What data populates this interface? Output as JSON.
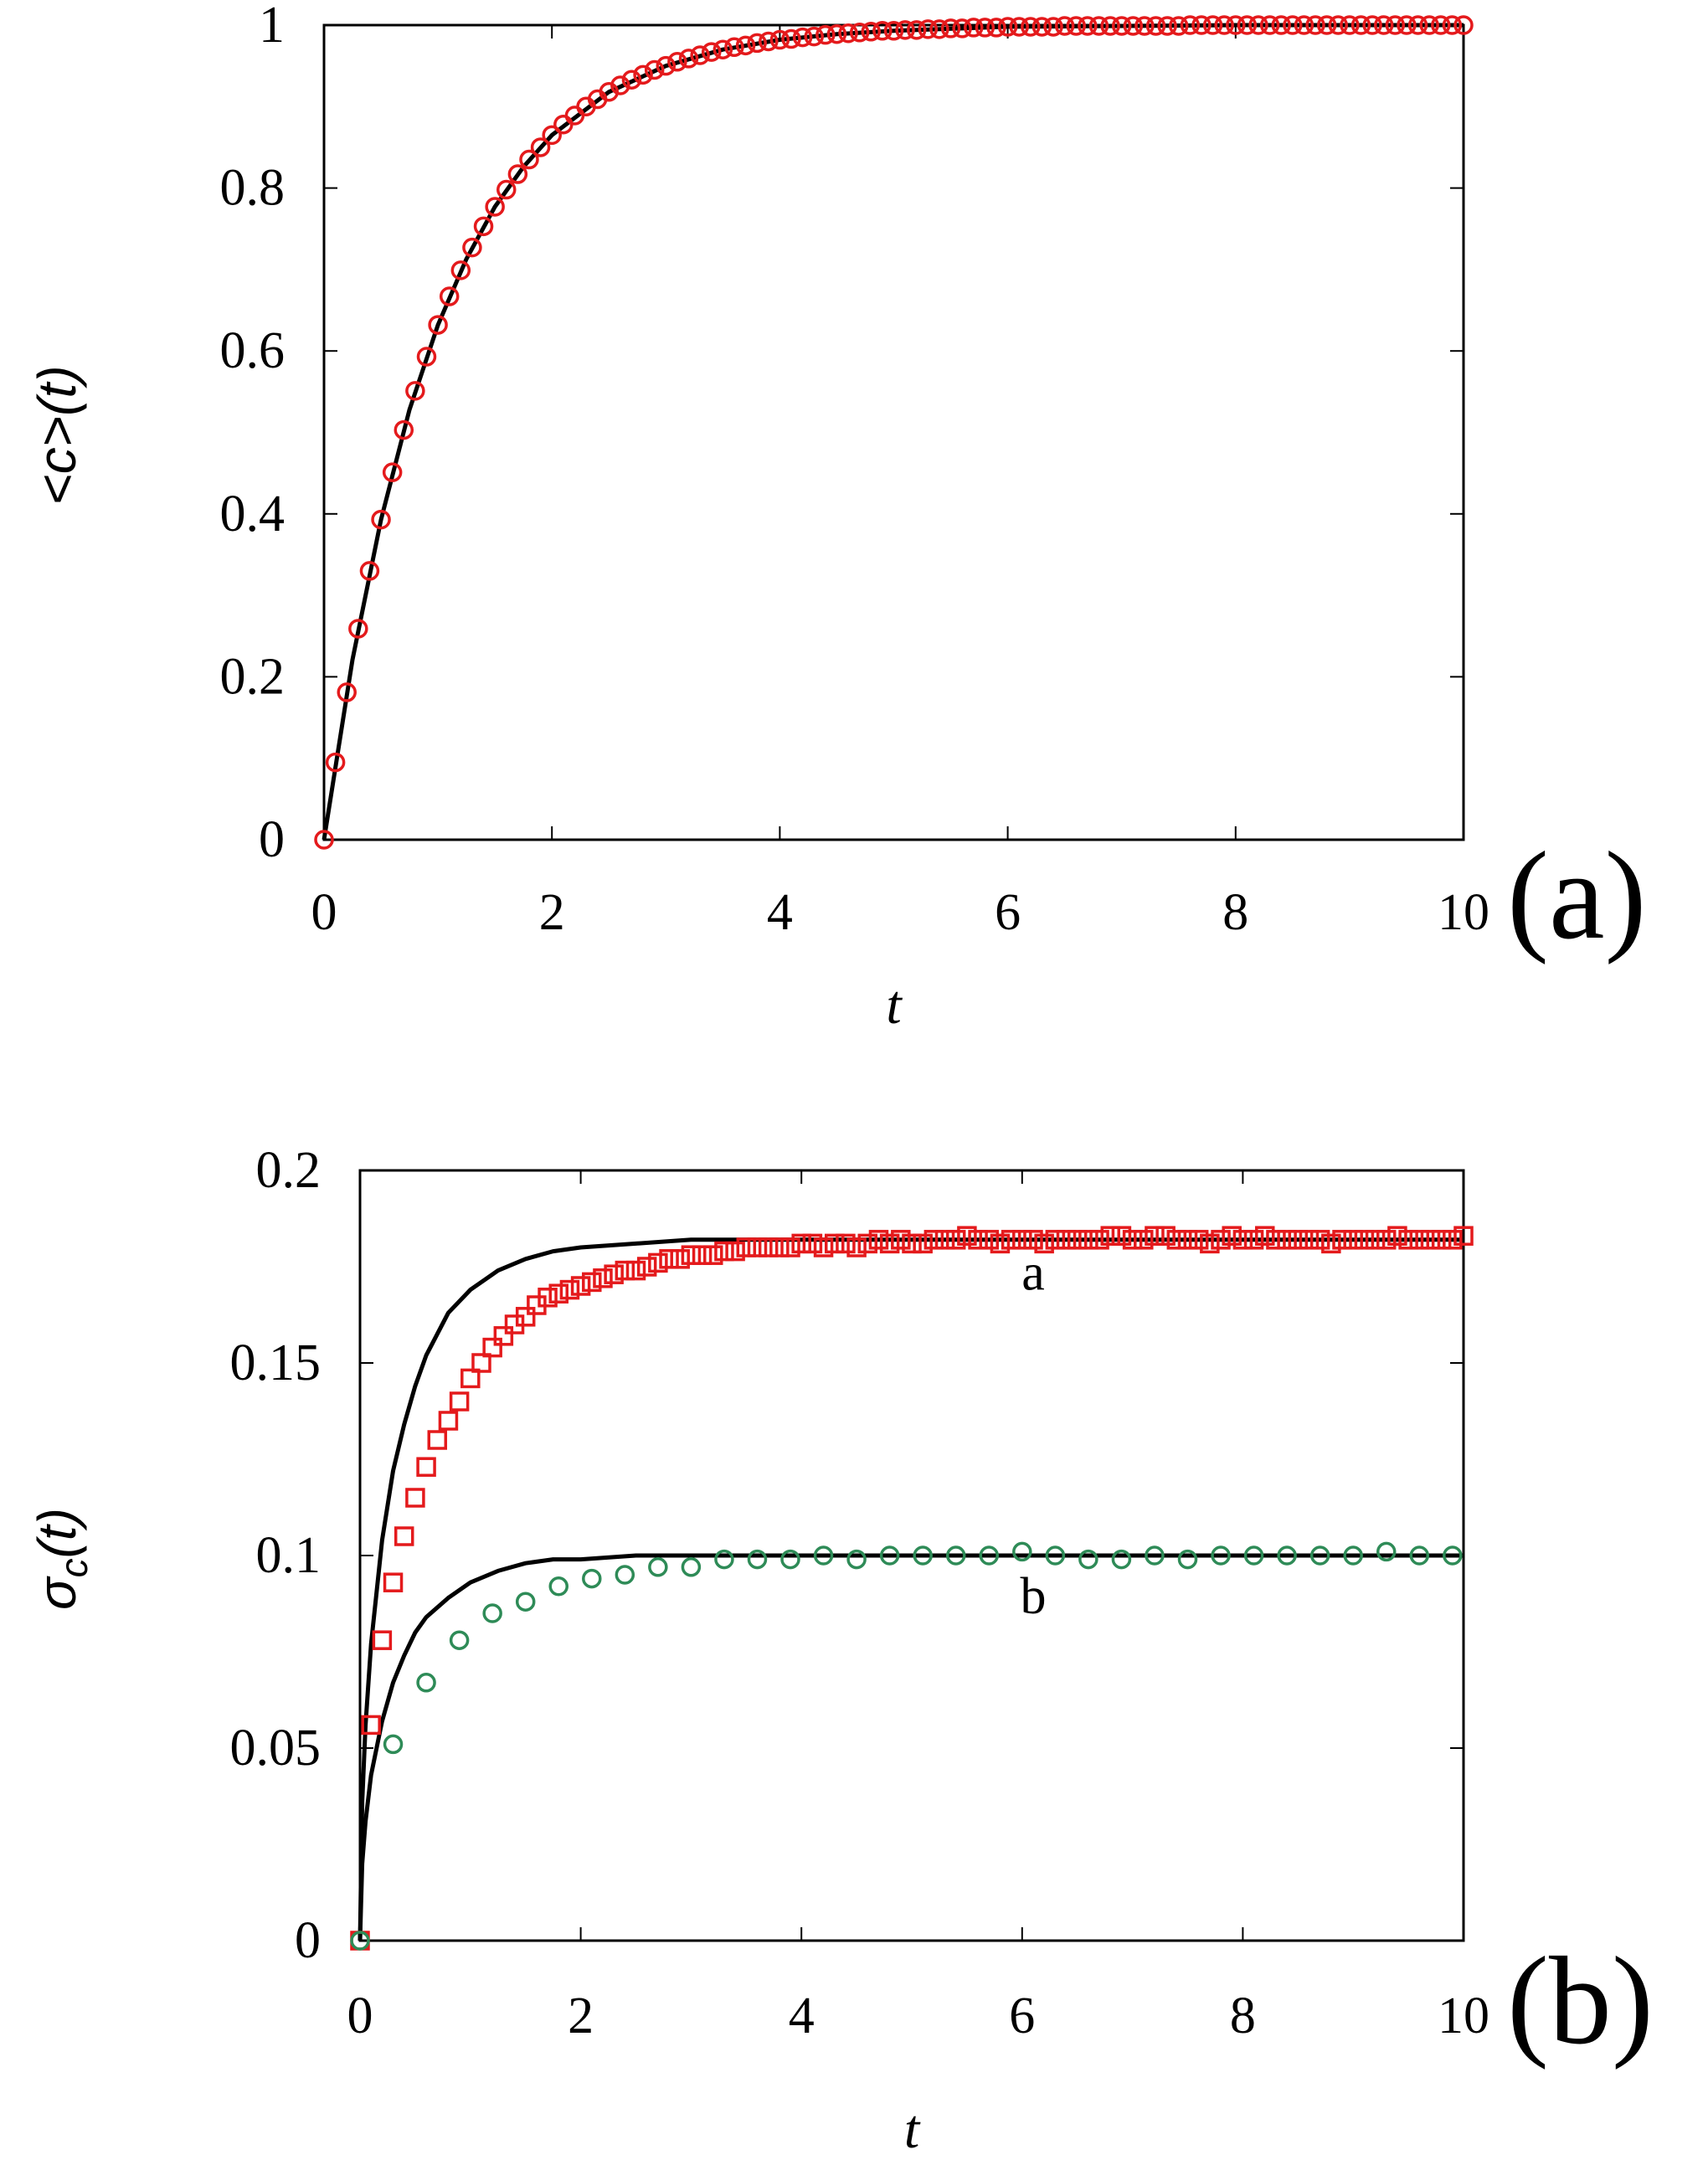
{
  "chart_data": [
    {
      "type": "line",
      "panel_label": "(a)",
      "xlabel": "t",
      "ylabel": "<c>(t)",
      "xlim": [
        0,
        10
      ],
      "ylim": [
        0,
        1
      ],
      "xticks": [
        "0",
        "2",
        "4",
        "6",
        "8",
        "10"
      ],
      "yticks": [
        "0",
        "0.2",
        "0.4",
        "0.6",
        "0.8",
        "1"
      ],
      "grid": false,
      "series": [
        {
          "kind": "markers",
          "marker": "circle",
          "color": "#e41a1c",
          "x": [
            0.0,
            0.1,
            0.2,
            0.3,
            0.4,
            0.5,
            0.6,
            0.7,
            0.8,
            0.9,
            1.0,
            1.1,
            1.2,
            1.3,
            1.4,
            1.5,
            1.6,
            1.7,
            1.8,
            1.9,
            2.0,
            2.1,
            2.2,
            2.3,
            2.4,
            2.5,
            2.6,
            2.7,
            2.8,
            2.9,
            3.0,
            3.1,
            3.2,
            3.3,
            3.4,
            3.5,
            3.6,
            3.7,
            3.8,
            3.9,
            4.0,
            4.1,
            4.2,
            4.3,
            4.4,
            4.5,
            4.6,
            4.7,
            4.8,
            4.9,
            5.0,
            5.1,
            5.2,
            5.3,
            5.4,
            5.5,
            5.6,
            5.7,
            5.8,
            5.9,
            6.0,
            6.1,
            6.2,
            6.3,
            6.4,
            6.5,
            6.6,
            6.7,
            6.8,
            6.9,
            7.0,
            7.1,
            7.2,
            7.3,
            7.4,
            7.5,
            7.6,
            7.7,
            7.8,
            7.9,
            8.0,
            8.1,
            8.2,
            8.3,
            8.4,
            8.5,
            8.6,
            8.7,
            8.8,
            8.9,
            9.0,
            9.1,
            9.2,
            9.3,
            9.4,
            9.5,
            9.6,
            9.7,
            9.8,
            9.9,
            10.0
          ],
          "y": [
            0.0,
            0.095,
            0.181,
            0.259,
            0.33,
            0.393,
            0.451,
            0.503,
            0.551,
            0.593,
            0.632,
            0.667,
            0.699,
            0.727,
            0.753,
            0.777,
            0.798,
            0.817,
            0.835,
            0.85,
            0.865,
            0.878,
            0.889,
            0.9,
            0.909,
            0.918,
            0.926,
            0.933,
            0.939,
            0.945,
            0.95,
            0.955,
            0.959,
            0.963,
            0.967,
            0.97,
            0.973,
            0.975,
            0.978,
            0.98,
            0.982,
            0.983,
            0.985,
            0.986,
            0.988,
            0.989,
            0.99,
            0.991,
            0.992,
            0.993,
            0.993,
            0.994,
            0.994,
            0.995,
            0.995,
            0.996,
            0.996,
            0.997,
            0.997,
            0.997,
            0.998,
            0.998,
            0.998,
            0.998,
            0.998,
            0.999,
            0.999,
            0.999,
            0.999,
            0.999,
            0.999,
            0.999,
            0.999,
            0.999,
            0.999,
            0.999,
            1.0,
            1.0,
            1.0,
            1.0,
            1.0,
            1.0,
            1.0,
            1.0,
            1.0,
            1.0,
            1.0,
            1.0,
            1.0,
            1.0,
            1.0,
            1.0,
            1.0,
            1.0,
            1.0,
            1.0,
            1.0,
            1.0,
            1.0,
            1.0,
            1.0
          ]
        },
        {
          "kind": "curve",
          "color": "#000000",
          "formula": "1 - exp(-t)",
          "x": [
            0,
            0.25,
            0.5,
            0.75,
            1.0,
            1.25,
            1.5,
            1.75,
            2.0,
            2.5,
            3.0,
            3.5,
            4.0,
            4.5,
            5.0,
            6.0,
            7.0,
            8.0,
            9.0,
            10.0
          ],
          "y": [
            0.0,
            0.221,
            0.393,
            0.528,
            0.632,
            0.713,
            0.777,
            0.826,
            0.865,
            0.918,
            0.95,
            0.97,
            0.982,
            0.989,
            0.993,
            0.998,
            0.999,
            1.0,
            1.0,
            1.0
          ]
        }
      ]
    },
    {
      "type": "line",
      "panel_label": "(b)",
      "xlabel": "t",
      "ylabel": "σc(t)",
      "ylabel_main": "σ",
      "ylabel_sub": "c",
      "ylabel_tail": "(t)",
      "xlim": [
        0,
        10
      ],
      "ylim": [
        0,
        0.2
      ],
      "xticks": [
        "0",
        "2",
        "4",
        "6",
        "8",
        "10"
      ],
      "yticks": [
        "0",
        "0.05",
        "0.1",
        "0.15",
        "0.2"
      ],
      "grid": false,
      "annotations": [
        {
          "text": "a",
          "x": 6.1,
          "y": 0.169
        },
        {
          "text": "b",
          "x": 6.1,
          "y": 0.085
        }
      ],
      "series": [
        {
          "kind": "markers",
          "marker": "square",
          "color": "#e41a1c",
          "x": [
            0.0,
            0.1,
            0.2,
            0.3,
            0.4,
            0.5,
            0.6,
            0.7,
            0.8,
            0.9,
            1.0,
            1.1,
            1.2,
            1.3,
            1.4,
            1.5,
            1.6,
            1.7,
            1.8,
            1.9,
            2.0,
            2.1,
            2.2,
            2.3,
            2.4,
            2.5,
            2.6,
            2.7,
            2.8,
            2.9,
            3.0,
            3.1,
            3.2,
            3.3,
            3.4,
            3.5,
            3.6,
            3.7,
            3.8,
            3.9,
            4.0,
            4.1,
            4.2,
            4.3,
            4.4,
            4.5,
            4.6,
            4.7,
            4.8,
            4.9,
            5.0,
            5.1,
            5.2,
            5.3,
            5.4,
            5.5,
            5.6,
            5.7,
            5.8,
            5.9,
            6.0,
            6.1,
            6.2,
            6.3,
            6.4,
            6.5,
            6.6,
            6.7,
            6.8,
            6.9,
            7.0,
            7.1,
            7.2,
            7.3,
            7.4,
            7.5,
            7.6,
            7.7,
            7.8,
            7.9,
            8.0,
            8.1,
            8.2,
            8.3,
            8.4,
            8.5,
            8.6,
            8.7,
            8.8,
            8.9,
            9.0,
            9.1,
            9.2,
            9.3,
            9.4,
            9.5,
            9.6,
            9.7,
            9.8,
            9.9,
            10.0
          ],
          "y": [
            0.0,
            0.056,
            0.078,
            0.093,
            0.105,
            0.115,
            0.123,
            0.13,
            0.135,
            0.14,
            0.146,
            0.15,
            0.154,
            0.157,
            0.16,
            0.162,
            0.165,
            0.167,
            0.168,
            0.169,
            0.17,
            0.171,
            0.172,
            0.173,
            0.174,
            0.174,
            0.175,
            0.176,
            0.177,
            0.177,
            0.178,
            0.178,
            0.178,
            0.179,
            0.179,
            0.18,
            0.18,
            0.18,
            0.18,
            0.18,
            0.181,
            0.181,
            0.18,
            0.181,
            0.181,
            0.18,
            0.181,
            0.182,
            0.181,
            0.182,
            0.181,
            0.181,
            0.182,
            0.182,
            0.182,
            0.183,
            0.182,
            0.182,
            0.181,
            0.182,
            0.182,
            0.182,
            0.181,
            0.182,
            0.182,
            0.182,
            0.182,
            0.182,
            0.183,
            0.183,
            0.182,
            0.182,
            0.183,
            0.183,
            0.182,
            0.182,
            0.182,
            0.181,
            0.182,
            0.183,
            0.182,
            0.182,
            0.183,
            0.182,
            0.182,
            0.182,
            0.182,
            0.182,
            0.181,
            0.182,
            0.182,
            0.182,
            0.182,
            0.182,
            0.183,
            0.182,
            0.182,
            0.182,
            0.182,
            0.182,
            0.183
          ]
        },
        {
          "kind": "markers",
          "marker": "circle",
          "color": "#2e8b57",
          "x": [
            0.0,
            0.3,
            0.6,
            0.9,
            1.2,
            1.5,
            1.8,
            2.1,
            2.4,
            2.7,
            3.0,
            3.3,
            3.6,
            3.9,
            4.2,
            4.5,
            4.8,
            5.1,
            5.4,
            5.7,
            6.0,
            6.3,
            6.6,
            6.9,
            7.2,
            7.5,
            7.8,
            8.1,
            8.4,
            8.7,
            9.0,
            9.3,
            9.6,
            9.9
          ],
          "y": [
            0.0,
            0.051,
            0.067,
            0.078,
            0.085,
            0.088,
            0.092,
            0.094,
            0.095,
            0.097,
            0.097,
            0.099,
            0.099,
            0.099,
            0.1,
            0.099,
            0.1,
            0.1,
            0.1,
            0.1,
            0.101,
            0.1,
            0.099,
            0.099,
            0.1,
            0.099,
            0.1,
            0.1,
            0.1,
            0.1,
            0.1,
            0.101,
            0.1,
            0.1
          ]
        },
        {
          "kind": "curve",
          "color": "#000000",
          "formula": "0.182 * sqrt(1 - exp(-2t))",
          "x": [
            0,
            0.02,
            0.05,
            0.1,
            0.2,
            0.3,
            0.4,
            0.5,
            0.6,
            0.8,
            1.0,
            1.25,
            1.5,
            1.75,
            2.0,
            2.5,
            3.0,
            3.5,
            4.0,
            5.0,
            6.0,
            7.0,
            8.0,
            9.0,
            10.0
          ],
          "y": [
            0.0,
            0.036,
            0.056,
            0.077,
            0.104,
            0.122,
            0.134,
            0.144,
            0.152,
            0.163,
            0.169,
            0.174,
            0.177,
            0.179,
            0.18,
            0.181,
            0.182,
            0.182,
            0.182,
            0.182,
            0.182,
            0.182,
            0.182,
            0.182,
            0.182
          ]
        },
        {
          "kind": "curve",
          "color": "#000000",
          "formula": "0.1 * sqrt(1 - exp(-2t))",
          "x": [
            0,
            0.02,
            0.05,
            0.1,
            0.2,
            0.3,
            0.4,
            0.5,
            0.6,
            0.8,
            1.0,
            1.25,
            1.5,
            1.75,
            2.0,
            2.5,
            3.0,
            3.5,
            4.0,
            5.0,
            6.0,
            7.0,
            8.0,
            9.0,
            10.0
          ],
          "y": [
            0.0,
            0.02,
            0.031,
            0.043,
            0.057,
            0.067,
            0.074,
            0.08,
            0.084,
            0.089,
            0.093,
            0.096,
            0.098,
            0.099,
            0.099,
            0.1,
            0.1,
            0.1,
            0.1,
            0.1,
            0.1,
            0.1,
            0.1,
            0.1,
            0.1
          ]
        }
      ]
    }
  ]
}
